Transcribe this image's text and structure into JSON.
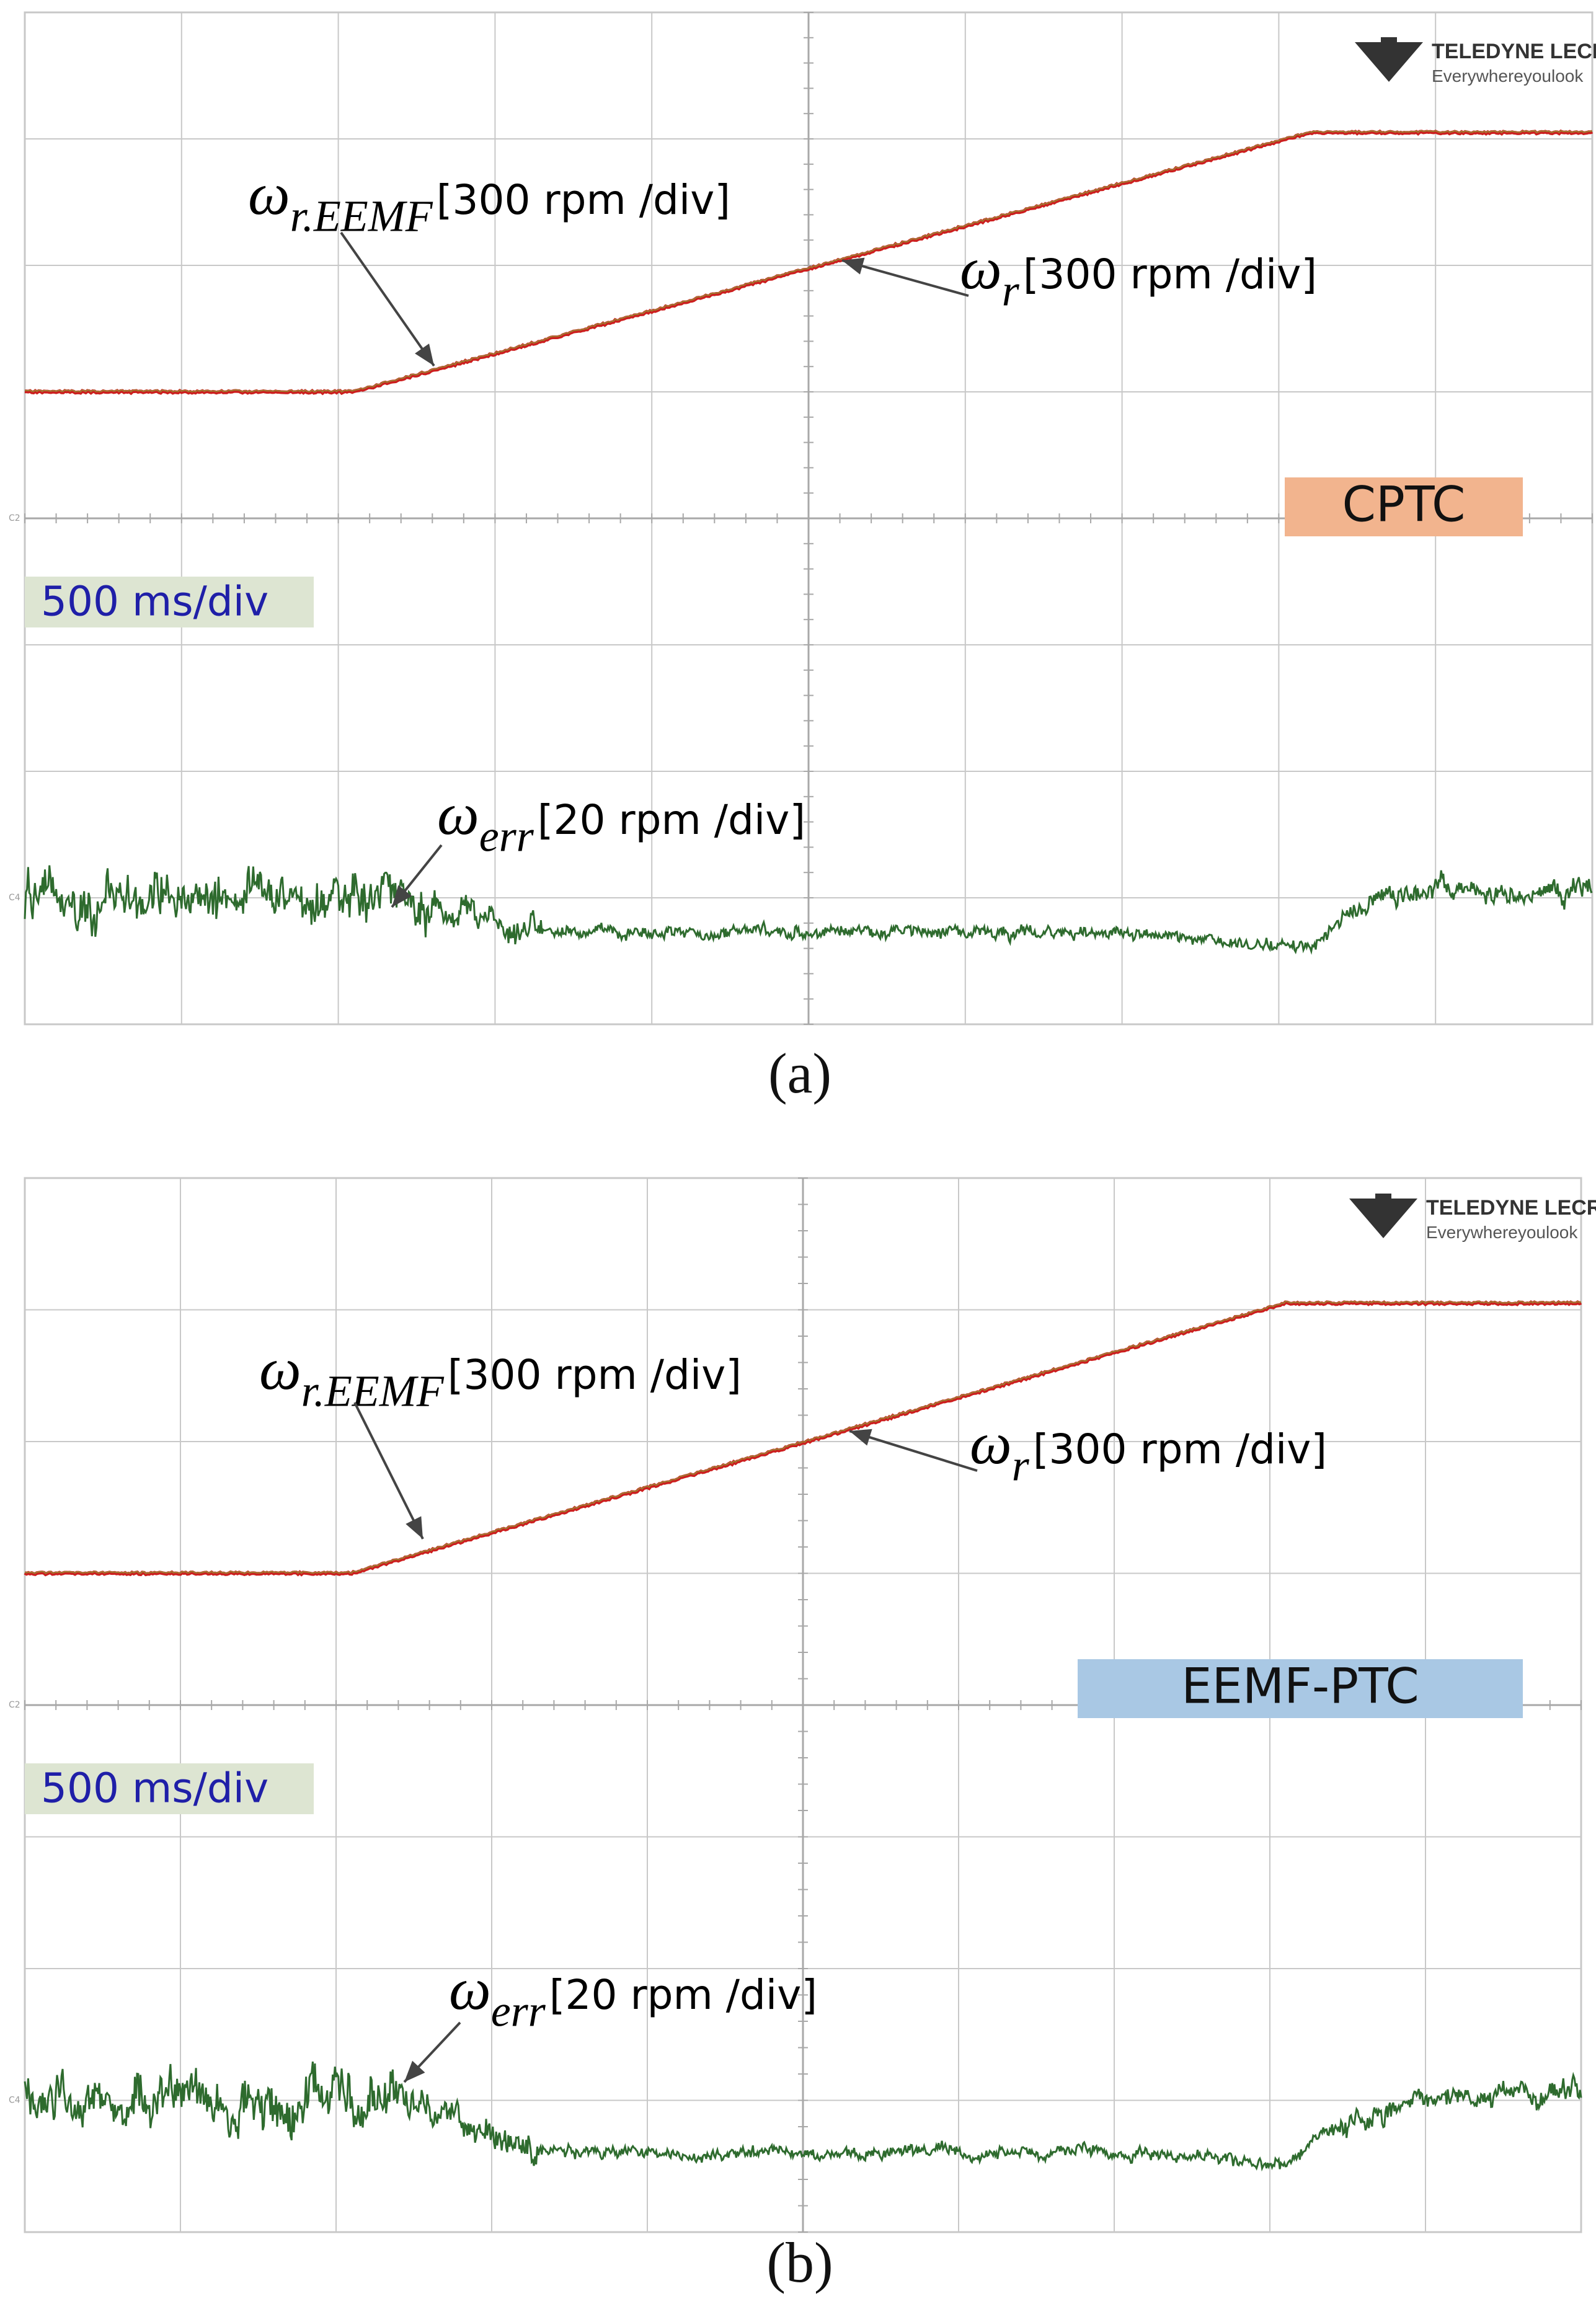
{
  "colors": {
    "grid": "#c8c8c8",
    "center_axis": "#a8a8a8",
    "speed_trace": "#cc1f1f",
    "speed_trace_overlay": "#8aa63a",
    "error_trace": "#2e6b2e",
    "arrow": "#444444",
    "timebase_bg": "#dde5d2",
    "timebase_text": "#1f1fa8",
    "cptc_bg": "#f2b48e",
    "eemf_bg": "#a9c8e4",
    "brand": "#333333"
  },
  "brand": {
    "name": "TELEDYNE LECROY",
    "tagline": "Everywhereyoulook"
  },
  "chart_data": [
    {
      "type": "line",
      "panel_label": "(a)",
      "method_label": "CPTC",
      "timebase": "500 ms/div",
      "grid": {
        "divisions_x": 10,
        "divisions_y": 8
      },
      "channel_markers": [
        "C2",
        "C4"
      ],
      "annotations": {
        "speed_estimated": {
          "symbol": "ω",
          "sub": "r.EEMF",
          "scale": "[300 rpm /div]"
        },
        "speed": {
          "symbol": "ω",
          "sub": "r",
          "scale": "[300 rpm /div]"
        },
        "error": {
          "symbol": "ω",
          "sub": "err",
          "scale": "[20 rpm /div]"
        }
      },
      "series": [
        {
          "role": "speed",
          "x": [
            0,
            2.1,
            8.2,
            10
          ],
          "y": [
            5.0,
            5.0,
            7.05,
            7.05
          ]
        },
        {
          "role": "error",
          "x": [
            0,
            2.4,
            3.0,
            3.3,
            4.0,
            5.0,
            6.0,
            7.0,
            8.2,
            8.5,
            9.0,
            9.5,
            10
          ],
          "y": [
            1.0,
            1.0,
            0.82,
            0.72,
            0.72,
            0.72,
            0.72,
            0.72,
            0.6,
            0.95,
            1.1,
            1.0,
            1.05
          ]
        }
      ]
    },
    {
      "type": "line",
      "panel_label": "(b)",
      "method_label": "EEMF-PTC",
      "timebase": "500 ms/div",
      "grid": {
        "divisions_x": 10,
        "divisions_y": 8
      },
      "channel_markers": [
        "C2",
        "C4"
      ],
      "annotations": {
        "speed_estimated": {
          "symbol": "ω",
          "sub": "r.EEMF",
          "scale": "[300 rpm /div]"
        },
        "speed": {
          "symbol": "ω",
          "sub": "r",
          "scale": "[300 rpm /div]"
        },
        "error": {
          "symbol": "ω",
          "sub": "err",
          "scale": "[20 rpm /div]"
        }
      },
      "series": [
        {
          "role": "speed",
          "x": [
            0,
            2.1,
            8.1,
            10
          ],
          "y": [
            5.0,
            5.0,
            7.05,
            7.05
          ]
        },
        {
          "role": "error",
          "x": [
            0,
            2.4,
            2.7,
            3.0,
            3.3,
            4.0,
            5.0,
            6.0,
            7.0,
            8.1,
            8.5,
            9.0,
            10
          ],
          "y": [
            1.0,
            1.05,
            0.8,
            0.72,
            0.62,
            0.6,
            0.6,
            0.6,
            0.6,
            0.52,
            0.88,
            0.98,
            1.08
          ]
        }
      ]
    }
  ]
}
